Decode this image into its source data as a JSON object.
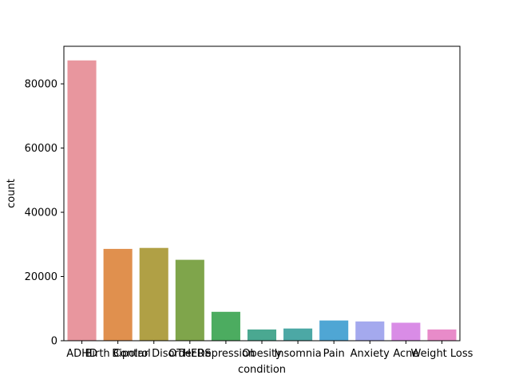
{
  "chart_data": {
    "type": "bar",
    "categories": [
      "ADHD",
      "Birth Control",
      "Bipolar Disorder",
      "OTHERS",
      "Depression",
      "Obesity",
      "Insomnia",
      "Pain",
      "Anxiety",
      "Acne",
      "Weight Loss"
    ],
    "values": [
      87300,
      28600,
      28900,
      25200,
      9000,
      3500,
      3800,
      6300,
      6000,
      5600,
      3500
    ],
    "colors": [
      "#e8969e",
      "#e0904e",
      "#b0a045",
      "#7fa54b",
      "#4cac60",
      "#4aa891",
      "#4ca8a5",
      "#4fa6d4",
      "#a4a9ee",
      "#d98ce6",
      "#e88bc9"
    ],
    "xlabel": "condition",
    "ylabel": "count",
    "ylim": [
      0,
      91700
    ],
    "yticks": [
      0,
      20000,
      40000,
      60000,
      80000
    ],
    "grid": false
  }
}
